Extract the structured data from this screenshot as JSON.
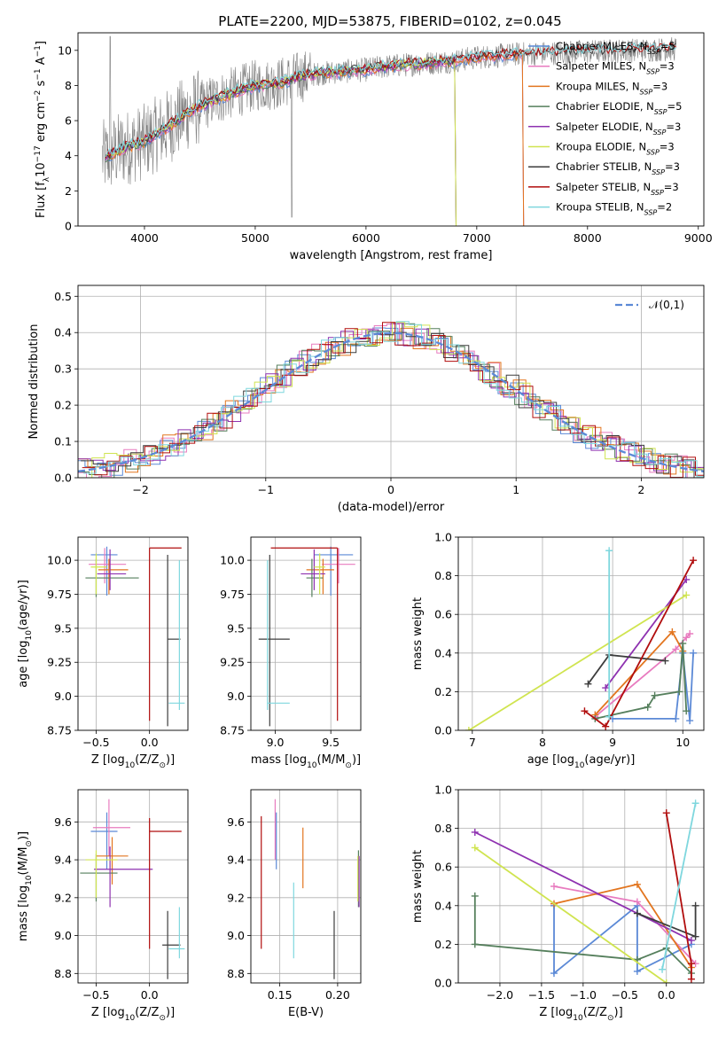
{
  "figure": {
    "title": "PLATE=2200, MJD=53875, FIBERID=0102, z=0.045"
  },
  "chart_data": [
    {
      "id": "spectrum",
      "type": "line",
      "xlabel": "wavelength [Angstrom, rest frame]",
      "ylabel": "Flux [f$_\\lambda$10$^{-17}$ erg cm$^{-2}$ s$^{-1}$ A$^{-1}$]",
      "xlim": [
        3400,
        9050
      ],
      "ylim": [
        0,
        11
      ],
      "xticks": [
        4000,
        5000,
        6000,
        7000,
        8000,
        9000
      ],
      "yticks": [
        0,
        2,
        4,
        6,
        8,
        10
      ],
      "grid": false,
      "legend": "top-right",
      "observed": {
        "color": "#808080",
        "x_range": [
          3620,
          8800
        ],
        "x": [
          3650,
          3800,
          4000,
          4200,
          4400,
          4600,
          4800,
          5000,
          5200,
          5400,
          5600,
          5800,
          6000,
          6200,
          6400,
          6600,
          6800,
          7000,
          7200,
          7400
        ],
        "y": [
          3.9,
          4.4,
          4.8,
          5.6,
          6.5,
          7.1,
          7.6,
          8.0,
          8.1,
          8.5,
          8.7,
          8.8,
          8.9,
          9.1,
          9.2,
          9.3,
          9.4,
          9.6,
          9.7,
          9.8
        ]
      },
      "model_continuum": {
        "x": [
          3650,
          3800,
          4000,
          4200,
          4400,
          4600,
          4800,
          5000,
          5200,
          5400,
          5600,
          5800,
          6000,
          6200,
          6400,
          6600,
          6800,
          7000,
          7200,
          7400
        ],
        "y": [
          3.9,
          4.4,
          4.8,
          5.6,
          6.5,
          7.1,
          7.6,
          8.0,
          8.1,
          8.5,
          8.7,
          8.8,
          8.9,
          9.1,
          9.2,
          9.3,
          9.4,
          9.6,
          9.7,
          9.8
        ]
      },
      "series": [
        {
          "name": "Chabrier MILES, N$_{SSP}$=5",
          "color": "#5b89d6",
          "cutoff": 7420
        },
        {
          "name": "Salpeter MILES, N$_{SSP}$=3",
          "color": "#e87bbf",
          "cutoff": 7420
        },
        {
          "name": "Kroupa MILES, N$_{SSP}$=3",
          "color": "#e2751f",
          "cutoff": 7420
        },
        {
          "name": "Chabrier ELODIE, N$_{SSP}$=5",
          "color": "#557f5c",
          "cutoff": 6810
        },
        {
          "name": "Salpeter ELODIE, N$_{SSP}$=3",
          "color": "#8e31b0",
          "cutoff": 6810
        },
        {
          "name": "Kroupa ELODIE, N$_{SSP}$=3",
          "color": "#d0e450",
          "cutoff": 6810
        },
        {
          "name": "Chabrier STELIB, N$_{SSP}$=3",
          "color": "#3d3d3d",
          "cutoff": 8800
        },
        {
          "name": "Salpeter STELIB, N$_{SSP}$=3",
          "color": "#b10d0d",
          "cutoff": 8800
        },
        {
          "name": "Kroupa STELIB, N$_{SSP}$=2",
          "color": "#7fd7de",
          "cutoff": 8800
        }
      ]
    },
    {
      "id": "residuals",
      "type": "histogram",
      "xlabel": "(data-model)/error",
      "ylabel": "Normed distribution",
      "xlim": [
        -2.5,
        2.5
      ],
      "ylim": [
        0,
        0.53
      ],
      "xticks": [
        -2,
        -1,
        0,
        1,
        2
      ],
      "yticks": [
        0.0,
        0.1,
        0.2,
        0.3,
        0.4,
        0.5
      ],
      "grid": true,
      "legend": "top-right",
      "reference": {
        "name": "$\\mathcal{N}(0,1)$",
        "color": "#5b89d6",
        "style": "dashed",
        "mean": 0,
        "sigma": 1
      },
      "bin_width": 0.1,
      "bin_start": -2.5,
      "bin_count": 50,
      "colors": [
        "#5b89d6",
        "#e87bbf",
        "#e2751f",
        "#557f5c",
        "#8e31b0",
        "#d0e450",
        "#3d3d3d",
        "#b10d0d",
        "#7fd7de"
      ]
    },
    {
      "id": "age-vs-Z",
      "type": "errorbar",
      "xlabel": "Z [log$_{10}$(Z/Z$_\\odot$)]",
      "ylabel": "age  [log$_{10}$(age/yr)]",
      "xlim": [
        -0.67,
        0.36
      ],
      "ylim": [
        8.75,
        10.17
      ],
      "xticks": [
        -0.5,
        0.0
      ],
      "yticks": [
        8.75,
        9.0,
        9.25,
        9.5,
        9.75,
        10.0
      ],
      "grid": true,
      "points": [
        {
          "x": -0.4,
          "y": 10.04,
          "xerr": [
            0.15,
            0.1
          ],
          "yerr": [
            0.3,
            0.06
          ],
          "color": "#5b89d6"
        },
        {
          "x": -0.42,
          "y": 9.97,
          "xerr": [
            0.15,
            0.2
          ],
          "yerr": [
            0.14,
            0.12
          ],
          "color": "#e87bbf"
        },
        {
          "x": -0.38,
          "y": 9.93,
          "xerr": [
            0.1,
            0.18
          ],
          "yerr": [
            0.18,
            0.08
          ],
          "color": "#e2751f"
        },
        {
          "x": -0.5,
          "y": 9.87,
          "xerr": [
            0.1,
            0.4
          ],
          "yerr": [
            0.14,
            0.14
          ],
          "color": "#557f5c"
        },
        {
          "x": -0.37,
          "y": 9.9,
          "xerr": [
            0.12,
            0.15
          ],
          "yerr": [
            0.12,
            0.18
          ],
          "color": "#8e31b0"
        },
        {
          "x": -0.5,
          "y": 9.95,
          "xerr": [
            0.05,
            0.1
          ],
          "yerr": [
            0.2,
            0.1
          ],
          "color": "#d0e450"
        },
        {
          "x": 0.17,
          "y": 9.42,
          "xerr": [
            0.0,
            0.12
          ],
          "yerr": [
            0.64,
            0.62
          ],
          "color": "#3d3d3d"
        },
        {
          "x": 0.0,
          "y": 10.09,
          "xerr": [
            0.0,
            0.3
          ],
          "yerr": [
            1.27,
            0.0
          ],
          "color": "#b10d0d"
        },
        {
          "x": 0.28,
          "y": 8.95,
          "xerr": [
            0.1,
            0.05
          ],
          "yerr": [
            0.05,
            1.05
          ],
          "color": "#7fd7de"
        }
      ]
    },
    {
      "id": "age-vs-mass",
      "type": "errorbar",
      "xlabel": "mass [log$_{10}$(M/M$_\\odot$)]",
      "ylabel": "",
      "xlim": [
        8.78,
        9.77
      ],
      "ylim": [
        8.75,
        10.17
      ],
      "xticks": [
        9.0,
        9.5
      ],
      "yticks": [
        8.75,
        9.0,
        9.25,
        9.5,
        9.75,
        10.0
      ],
      "grid": true,
      "points": [
        {
          "x": 9.5,
          "y": 10.04,
          "xerr": [
            0.15,
            0.2
          ],
          "yerr": [
            0.3,
            0.06
          ],
          "color": "#5b89d6"
        },
        {
          "x": 9.57,
          "y": 9.97,
          "xerr": [
            0.15,
            0.15
          ],
          "yerr": [
            0.14,
            0.12
          ],
          "color": "#e87bbf"
        },
        {
          "x": 9.43,
          "y": 9.93,
          "xerr": [
            0.15,
            0.1
          ],
          "yerr": [
            0.18,
            0.08
          ],
          "color": "#e2751f"
        },
        {
          "x": 9.33,
          "y": 9.87,
          "xerr": [
            0.05,
            0.1
          ],
          "yerr": [
            0.14,
            0.14
          ],
          "color": "#557f5c"
        },
        {
          "x": 9.35,
          "y": 9.9,
          "xerr": [
            0.12,
            0.1
          ],
          "yerr": [
            0.12,
            0.18
          ],
          "color": "#8e31b0"
        },
        {
          "x": 9.4,
          "y": 9.95,
          "xerr": [
            0.05,
            0.05
          ],
          "yerr": [
            0.2,
            0.1
          ],
          "color": "#d0e450"
        },
        {
          "x": 8.95,
          "y": 9.42,
          "xerr": [
            0.1,
            0.18
          ],
          "yerr": [
            0.64,
            0.62
          ],
          "color": "#3d3d3d"
        },
        {
          "x": 9.56,
          "y": 10.09,
          "xerr": [
            0.6,
            0.0
          ],
          "yerr": [
            1.27,
            0.0
          ],
          "color": "#b10d0d"
        },
        {
          "x": 8.93,
          "y": 8.95,
          "xerr": [
            0.0,
            0.2
          ],
          "yerr": [
            0.05,
            1.05
          ],
          "color": "#7fd7de"
        }
      ]
    },
    {
      "id": "mass-weight-vs-age",
      "type": "line",
      "xlabel": "age  [log$_{10}$(age/yr)]",
      "ylabel": "mass weight",
      "xlim": [
        6.8,
        10.3
      ],
      "ylim": [
        0,
        1
      ],
      "xticks": [
        7,
        8,
        9,
        10
      ],
      "yticks": [
        0.0,
        0.2,
        0.4,
        0.6,
        0.8,
        1.0
      ],
      "grid": true,
      "series": [
        {
          "color": "#5b89d6",
          "x": [
            9.0,
            9.9,
            10.0,
            10.1,
            10.15
          ],
          "y": [
            0.06,
            0.06,
            0.4,
            0.05,
            0.4
          ]
        },
        {
          "color": "#e87bbf",
          "x": [
            8.75,
            9.9,
            10.05,
            10.1
          ],
          "y": [
            0.07,
            0.42,
            0.48,
            0.5
          ]
        },
        {
          "color": "#e2751f",
          "x": [
            8.75,
            9.85,
            10.0
          ],
          "y": [
            0.08,
            0.51,
            0.41
          ]
        },
        {
          "color": "#557f5c",
          "x": [
            8.75,
            9.5,
            9.6,
            9.95,
            10.0,
            10.05
          ],
          "y": [
            0.06,
            0.12,
            0.18,
            0.2,
            0.45,
            0.1
          ]
        },
        {
          "color": "#8e31b0",
          "x": [
            8.9,
            10.05
          ],
          "y": [
            0.22,
            0.78
          ]
        },
        {
          "color": "#d0e450",
          "x": [
            6.95,
            10.05
          ],
          "y": [
            0.0,
            0.7
          ]
        },
        {
          "color": "#3d3d3d",
          "x": [
            8.65,
            8.95,
            9.75
          ],
          "y": [
            0.24,
            0.39,
            0.36
          ]
        },
        {
          "color": "#b10d0d",
          "x": [
            8.6,
            8.9,
            10.15
          ],
          "y": [
            0.1,
            0.02,
            0.88
          ]
        },
        {
          "color": "#7fd7de",
          "x": [
            8.95,
            8.95
          ],
          "y": [
            0.93,
            0.07
          ]
        }
      ]
    },
    {
      "id": "mass-vs-Z",
      "type": "errorbar",
      "xlabel": "Z [log$_{10}$(Z/Z$_\\odot$)]",
      "ylabel": "mass [log$_{10}$(M/M$_\\odot$)]",
      "xlim": [
        -0.67,
        0.36
      ],
      "ylim": [
        8.75,
        9.77
      ],
      "xticks": [
        -0.5,
        0.0
      ],
      "yticks": [
        8.8,
        9.0,
        9.2,
        9.4,
        9.6
      ],
      "grid": true,
      "points": [
        {
          "x": -0.4,
          "y": 9.55,
          "xerr": [
            0.15,
            0.1
          ],
          "yerr": [
            0.2,
            0.1
          ],
          "color": "#5b89d6"
        },
        {
          "x": -0.38,
          "y": 9.57,
          "xerr": [
            0.15,
            0.2
          ],
          "yerr": [
            0.15,
            0.15
          ],
          "color": "#e87bbf"
        },
        {
          "x": -0.35,
          "y": 9.42,
          "xerr": [
            0.15,
            0.15
          ],
          "yerr": [
            0.15,
            0.1
          ],
          "color": "#e2751f"
        },
        {
          "x": -0.5,
          "y": 9.33,
          "xerr": [
            0.15,
            0.2
          ],
          "yerr": [
            0.15,
            0.1
          ],
          "color": "#557f5c"
        },
        {
          "x": -0.37,
          "y": 9.35,
          "xerr": [
            0.15,
            0.4
          ],
          "yerr": [
            0.2,
            0.12
          ],
          "color": "#8e31b0"
        },
        {
          "x": -0.5,
          "y": 9.4,
          "xerr": [
            0.1,
            0.2
          ],
          "yerr": [
            0.2,
            0.05
          ],
          "color": "#d0e450"
        },
        {
          "x": 0.17,
          "y": 8.95,
          "xerr": [
            0.05,
            0.12
          ],
          "yerr": [
            0.18,
            0.18
          ],
          "color": "#3d3d3d"
        },
        {
          "x": 0.0,
          "y": 9.55,
          "xerr": [
            0.0,
            0.3
          ],
          "yerr": [
            0.62,
            0.07
          ],
          "color": "#b10d0d"
        },
        {
          "x": 0.28,
          "y": 8.93,
          "xerr": [
            0.1,
            0.05
          ],
          "yerr": [
            0.05,
            0.22
          ],
          "color": "#7fd7de"
        }
      ]
    },
    {
      "id": "mass-vs-ebv",
      "type": "errorbar",
      "xlabel": "E(B-V)",
      "ylabel": "",
      "xlim": [
        0.125,
        0.22
      ],
      "ylim": [
        8.75,
        9.77
      ],
      "xticks": [
        0.15,
        0.2
      ],
      "yticks": [
        8.8,
        9.0,
        9.2,
        9.4,
        9.6
      ],
      "grid": true,
      "points": [
        {
          "x": 0.147,
          "y": 9.5,
          "xerr": [
            0,
            0
          ],
          "yerr": [
            0.15,
            0.15
          ],
          "color": "#5b89d6"
        },
        {
          "x": 0.146,
          "y": 9.6,
          "xerr": [
            0,
            0
          ],
          "yerr": [
            0.2,
            0.12
          ],
          "color": "#e87bbf"
        },
        {
          "x": 0.17,
          "y": 9.42,
          "xerr": [
            0,
            0
          ],
          "yerr": [
            0.17,
            0.15
          ],
          "color": "#e2751f"
        },
        {
          "x": 0.218,
          "y": 9.3,
          "xerr": [
            0,
            0
          ],
          "yerr": [
            0.15,
            0.15
          ],
          "color": "#557f5c"
        },
        {
          "x": 0.2185,
          "y": 9.3,
          "xerr": [
            0,
            0
          ],
          "yerr": [
            0.15,
            0.12
          ],
          "color": "#8e31b0"
        },
        {
          "x": 0.2175,
          "y": 9.3,
          "xerr": [
            0,
            0
          ],
          "yerr": [
            0.12,
            0.12
          ],
          "color": "#d0e450"
        },
        {
          "x": 0.197,
          "y": 8.95,
          "xerr": [
            0,
            0
          ],
          "yerr": [
            0.18,
            0.18
          ],
          "color": "#3d3d3d"
        },
        {
          "x": 0.134,
          "y": 9.28,
          "xerr": [
            0,
            0
          ],
          "yerr": [
            0.35,
            0.35
          ],
          "color": "#b10d0d"
        },
        {
          "x": 0.162,
          "y": 9.08,
          "xerr": [
            0,
            0
          ],
          "yerr": [
            0.2,
            0.2
          ],
          "color": "#7fd7de"
        }
      ]
    },
    {
      "id": "mass-weight-vs-Z",
      "type": "line",
      "xlabel": "Z [log$_{10}$(Z/Z$_\\odot$)]",
      "ylabel": "mass weight",
      "xlim": [
        -2.5,
        0.45
      ],
      "ylim": [
        0,
        1
      ],
      "xticks": [
        -2.0,
        -1.5,
        -1.0,
        -0.5,
        0.0
      ],
      "yticks": [
        0.0,
        0.2,
        0.4,
        0.6,
        0.8,
        1.0
      ],
      "grid": true,
      "series": [
        {
          "color": "#5b89d6",
          "x": [
            -1.35,
            -1.35,
            -0.35,
            -0.35,
            0.3
          ],
          "y": [
            0.4,
            0.05,
            0.4,
            0.06,
            0.2
          ]
        },
        {
          "color": "#e87bbf",
          "x": [
            -1.35,
            -0.35,
            0.35
          ],
          "y": [
            0.5,
            0.42,
            0.1
          ]
        },
        {
          "color": "#e2751f",
          "x": [
            -1.35,
            -0.35,
            0.3
          ],
          "y": [
            0.41,
            0.51,
            0.08
          ]
        },
        {
          "color": "#557f5c",
          "x": [
            -2.3,
            -2.3,
            -0.35,
            0.0,
            0.3
          ],
          "y": [
            0.45,
            0.2,
            0.12,
            0.18,
            0.05
          ]
        },
        {
          "color": "#8e31b0",
          "x": [
            -2.3,
            0.3
          ],
          "y": [
            0.78,
            0.22
          ]
        },
        {
          "color": "#d0e450",
          "x": [
            -2.3,
            0.0
          ],
          "y": [
            0.7,
            0.0
          ]
        },
        {
          "color": "#3d3d3d",
          "x": [
            -0.35,
            0.35,
            0.35
          ],
          "y": [
            0.36,
            0.24,
            0.4
          ]
        },
        {
          "color": "#b10d0d",
          "x": [
            0.0,
            0.3,
            0.3
          ],
          "y": [
            0.88,
            0.1,
            0.02
          ]
        },
        {
          "color": "#7fd7de",
          "x": [
            -0.05,
            0.35
          ],
          "y": [
            0.07,
            0.93
          ]
        }
      ]
    }
  ]
}
